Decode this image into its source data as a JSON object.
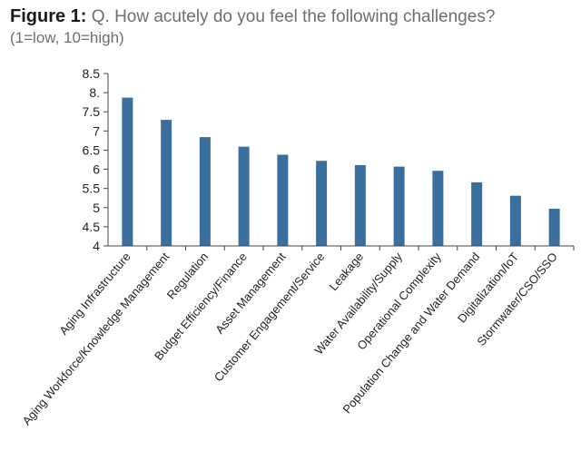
{
  "header": {
    "figure_label": "Figure 1:",
    "question": " Q. How acutely do you feel the following challenges?",
    "scale_note": "(1=low, 10=high)"
  },
  "colors": {
    "bar": "#3a6e9c",
    "axis": "#444444"
  },
  "chart_data": {
    "type": "bar",
    "title": "Q. How acutely do you feel the following challenges?",
    "subtitle": "(1=low, 10=high)",
    "xlabel": "",
    "ylabel": "",
    "ylim": [
      4,
      8.5
    ],
    "yticks": [
      4,
      4.5,
      5,
      5.5,
      6,
      6.5,
      7,
      7.5,
      8,
      8.5
    ],
    "ytick_labels": [
      "4",
      "4.5",
      "5",
      "5.5",
      "6",
      "6.5",
      "7",
      "7.5",
      "8.",
      "8.5"
    ],
    "grid": false,
    "categories": [
      "Aging Infrastructure",
      "Aging Workforce/Knowledge Management",
      "Regulation",
      "Budget Efficiency/Finance",
      "Asset Management",
      "Customer Engagement/Service",
      "Leakage",
      "Water Availability/Supply",
      "Operational Complexity",
      "Population Change and Water Demand",
      "Digitalization/IoT",
      "Stormwater/CSO/SSO"
    ],
    "values": [
      7.87,
      7.29,
      6.84,
      6.59,
      6.38,
      6.22,
      6.11,
      6.07,
      5.96,
      5.66,
      5.31,
      4.97
    ]
  }
}
